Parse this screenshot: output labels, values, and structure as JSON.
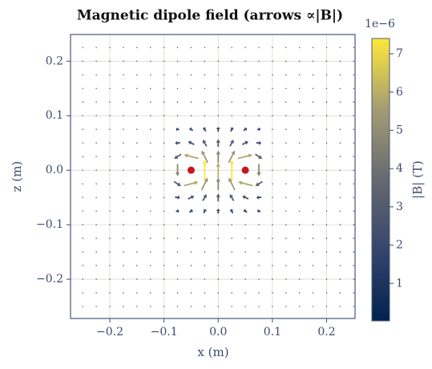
{
  "chart_data": {
    "type": "quiver",
    "title": "Magnetic dipole field (arrows ∝|B|)",
    "xlabel": "x (m)",
    "ylabel": "z (m)",
    "xlim": [
      -0.2725,
      0.2525
    ],
    "ylim": [
      -0.272,
      0.249
    ],
    "xticks": [
      {
        "value": -0.2,
        "label": "−0.2"
      },
      {
        "value": -0.1,
        "label": "−0.1"
      },
      {
        "value": 0,
        "label": "0.0"
      },
      0.1,
      0.2
    ],
    "yticks": [
      {
        "value": -0.2,
        "label": "−0.2"
      },
      {
        "value": -0.1,
        "label": "−0.1"
      },
      {
        "value": 0,
        "label": "0.0"
      },
      0.1,
      0.2
    ],
    "grid": true,
    "grid_x": [
      -0.25,
      -0.225,
      -0.2,
      -0.175,
      -0.15,
      -0.125,
      -0.1,
      -0.075,
      -0.05,
      -0.025,
      0,
      0.025,
      0.05,
      0.075,
      0.1,
      0.125,
      0.15,
      0.175,
      0.2,
      0.225,
      0.25
    ],
    "grid_z": [
      -0.25,
      -0.225,
      -0.2,
      -0.175,
      -0.15,
      -0.125,
      -0.1,
      -0.075,
      -0.05,
      -0.025,
      0,
      0.025,
      0.05,
      0.075,
      0.1,
      0.125,
      0.15,
      0.175,
      0.2,
      0.225,
      0.25
    ],
    "arrows": {
      "x": [
        -0.075,
        -0.05,
        -0.025,
        0,
        0.025,
        0.05,
        0.075,
        -0.075,
        -0.05,
        -0.025,
        0,
        0.025,
        0.05,
        0.075,
        -0.075,
        -0.05,
        -0.025,
        0,
        0.025,
        0.05,
        0.075,
        -0.075,
        -0.025,
        0,
        0.025,
        0.075,
        -0.075,
        -0.05,
        -0.025,
        0,
        0.025,
        0.05,
        0.075,
        -0.075,
        -0.05,
        -0.025,
        0,
        0.025,
        0.05,
        0.075,
        -0.075,
        -0.05,
        -0.025,
        0,
        0.025,
        0.05,
        0.075
      ],
      "z": [
        0.075,
        0.075,
        0.075,
        0.075,
        0.075,
        0.075,
        0.075,
        0.05,
        0.05,
        0.05,
        0.05,
        0.05,
        0.05,
        0.05,
        0.025,
        0.025,
        0.025,
        0.025,
        0.025,
        0.025,
        0.025,
        0,
        0,
        0,
        0,
        0,
        -0.025,
        -0.025,
        -0.025,
        -0.025,
        -0.025,
        -0.025,
        -0.025,
        -0.05,
        -0.05,
        -0.05,
        -0.05,
        -0.05,
        -0.05,
        -0.05,
        -0.075,
        -0.075,
        -0.075,
        -0.075,
        -0.075,
        -0.075,
        -0.075
      ],
      "u": [
        -1.27,
        -1.28,
        -0.8,
        0,
        0.8,
        1.28,
        1.27,
        -1.99,
        -2.4,
        -1.48,
        0,
        1.48,
        2.4,
        1.99,
        -2.77,
        -5.65,
        -2.4,
        0,
        2.4,
        5.65,
        2.77,
        0,
        0,
        0,
        0,
        0,
        2.77,
        5.65,
        2.4,
        0,
        -2.4,
        -5.65,
        -2.77,
        1.99,
        2.4,
        1.48,
        0,
        -1.48,
        -2.4,
        -1.99,
        1.27,
        1.28,
        0.8,
        0,
        -0.8,
        -1.28,
        -1.27
      ],
      "w": [
        0.28,
        0.96,
        1.6,
        1.85,
        1.6,
        0.96,
        0.28,
        -0.17,
        1.2,
        2.58,
        3,
        2.58,
        1.2,
        -0.17,
        -1.85,
        1.41,
        4.8,
        4.8,
        4.8,
        1.41,
        -1.85,
        -4.8,
        8,
        6,
        8,
        -4.8,
        -1.85,
        1.41,
        4.8,
        4.8,
        4.8,
        1.41,
        -1.85,
        -0.17,
        1.2,
        2.58,
        3,
        2.58,
        1.2,
        -0.17,
        0.28,
        0.96,
        1.6,
        1.85,
        1.6,
        0.96,
        0.28
      ],
      "magnitude": [
        1.3,
        1.6,
        1.79,
        1.85,
        1.79,
        1.6,
        1.3,
        2.0,
        2.68,
        2.97,
        3,
        2.97,
        2.68,
        2.0,
        3.33,
        5.82,
        5.37,
        4.8,
        5.37,
        5.82,
        3.33,
        4.8,
        8,
        6,
        8,
        4.8,
        3.33,
        5.82,
        5.37,
        4.8,
        5.37,
        5.82,
        3.33,
        2.0,
        2.68,
        2.97,
        3,
        2.97,
        2.68,
        2.0,
        1.3,
        1.6,
        1.79,
        1.85,
        1.79,
        1.6,
        1.3
      ]
    },
    "sources": {
      "x": [
        -0.05,
        0.05
      ],
      "z": [
        0,
        0
      ],
      "color": "#c8161e"
    },
    "colorbar": {
      "label": "|B| (T)",
      "offset_label": "1e−6",
      "colormap": "cividis",
      "clim": [
        0.02,
        7.4
      ],
      "ticks": [
        1,
        2,
        3,
        4,
        5,
        6,
        7
      ]
    }
  }
}
